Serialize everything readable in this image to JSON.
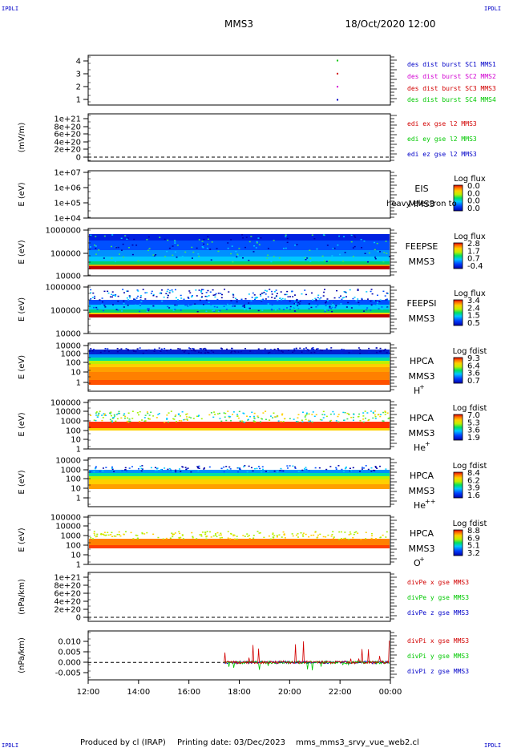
{
  "corner_label": "IPDLI",
  "header": {
    "mission": "MMS3",
    "datetime": "18/Oct/2020 12:00"
  },
  "footer": {
    "produced_by": "Produced by cl (IRAP)",
    "printing_date": "Printing date: 03/Dec/2023",
    "file": "mms_mms3_srvy_vue_web2.cl"
  },
  "time_axis": {
    "ticks": [
      "12:00",
      "14:00",
      "16:00",
      "18:00",
      "20:00",
      "22:00",
      "00:00"
    ],
    "range_hours": [
      0,
      12
    ]
  },
  "colors": {
    "blue": "#0000c8",
    "magenta": "#d200d2",
    "red": "#d20000",
    "green": "#00c800"
  },
  "chart_data": [
    {
      "id": "burst",
      "type": "scatter",
      "ylim": [
        0.6,
        4.4
      ],
      "yticks": [
        "1",
        "2",
        "3",
        "4"
      ],
      "series": [
        {
          "name": "des dist burst SC1 MMS1",
          "color": "#0000c8",
          "x": [
            9.9
          ],
          "y": [
            1
          ]
        },
        {
          "name": "des dist burst SC2 MMS2",
          "color": "#d200d2",
          "x": [
            9.9
          ],
          "y": [
            2
          ]
        },
        {
          "name": "des dist burst SC3 MMS3",
          "color": "#d20000",
          "x": [
            9.9
          ],
          "y": [
            3
          ]
        },
        {
          "name": "des dist burst SC4 MMS4",
          "color": "#00c800",
          "x": [
            9.9
          ],
          "y": [
            4
          ]
        }
      ]
    },
    {
      "id": "edi",
      "type": "line",
      "ylabel": "(mV/m)",
      "yticks": [
        "1e+21",
        "8e+20",
        "6e+20",
        "4e+20",
        "2e+20",
        "0"
      ],
      "series": [
        {
          "name": "edi ex gse l2 MMS3",
          "color": "#d20000"
        },
        {
          "name": "edi ey gse l2 MMS3",
          "color": "#00c800"
        },
        {
          "name": "edi ez gse l2 MMS3",
          "color": "#0000c8"
        }
      ]
    },
    {
      "id": "eis",
      "type": "heatmap",
      "ylabel": "E (eV)",
      "yticks": [
        "1e+07",
        "1e+06",
        "1e+05",
        "1e+04"
      ],
      "instrument": [
        "EIS",
        "MMS3"
      ],
      "overlay_text": "heavy electron to",
      "colorbar": {
        "title": "Log flux",
        "ticks": [
          "0.0",
          "0.0",
          "0.0",
          "0.0"
        ]
      }
    },
    {
      "id": "feepse",
      "type": "heatmap",
      "ylabel": "E (eV)",
      "yticks": [
        "1000000",
        "100000",
        "10000"
      ],
      "instrument": [
        "FEEPSE",
        "MMS3"
      ],
      "colorbar": {
        "title": "Log flux",
        "ticks": [
          "2.8",
          "1.7",
          "0.7",
          "-0.4"
        ]
      }
    },
    {
      "id": "feepsi",
      "type": "heatmap",
      "ylabel": "E (eV)",
      "yticks": [
        "1000000",
        "100000",
        "10000"
      ],
      "instrument": [
        "FEEPSI",
        "MMS3"
      ],
      "colorbar": {
        "title": "Log flux",
        "ticks": [
          "3.4",
          "2.4",
          "1.5",
          "0.5"
        ]
      }
    },
    {
      "id": "hpca_h",
      "type": "heatmap",
      "ylabel": "E (eV)",
      "yticks": [
        "10000",
        "1000",
        "100",
        "10",
        "1"
      ],
      "instrument": [
        "HPCA",
        "MMS3",
        "H",
        "+"
      ],
      "colorbar": {
        "title": "Log fdist",
        "ticks": [
          "9.3",
          "6.4",
          "3.6",
          "0.7"
        ]
      }
    },
    {
      "id": "hpca_he",
      "type": "heatmap",
      "ylabel": "E (eV)",
      "yticks": [
        "100000",
        "10000",
        "1000",
        "100",
        "10",
        "1"
      ],
      "instrument": [
        "HPCA",
        "MMS3",
        "He",
        "+"
      ],
      "colorbar": {
        "title": "Log fdist",
        "ticks": [
          "7.0",
          "5.3",
          "3.6",
          "1.9"
        ]
      }
    },
    {
      "id": "hpca_hepp",
      "type": "heatmap",
      "ylabel": "E (eV)",
      "yticks": [
        "10000",
        "1000",
        "100",
        "10",
        "1"
      ],
      "instrument": [
        "HPCA",
        "MMS3",
        "He",
        "++"
      ],
      "colorbar": {
        "title": "Log fdist",
        "ticks": [
          "8.4",
          "6.2",
          "3.9",
          "1.6"
        ]
      }
    },
    {
      "id": "hpca_o",
      "type": "heatmap",
      "ylabel": "E (eV)",
      "yticks": [
        "100000",
        "10000",
        "1000",
        "100",
        "10",
        "1"
      ],
      "instrument": [
        "HPCA",
        "MMS3",
        "O",
        "+"
      ],
      "colorbar": {
        "title": "Log fdist",
        "ticks": [
          "8.8",
          "6.9",
          "5.1",
          "3.2"
        ]
      }
    },
    {
      "id": "divpe",
      "type": "line",
      "ylabel": "(nPa/km)",
      "yticks": [
        "1e+21",
        "8e+20",
        "6e+20",
        "4e+20",
        "2e+20",
        "0"
      ],
      "series": [
        {
          "name": "divPe x gse MMS3",
          "color": "#d20000"
        },
        {
          "name": "divPe y gse MMS3",
          "color": "#00c800"
        },
        {
          "name": "divPe z gse MMS3",
          "color": "#0000c8"
        }
      ]
    },
    {
      "id": "divpi",
      "type": "line",
      "ylabel": "(nPa/km)",
      "ylim": [
        -0.0075,
        0.0135
      ],
      "yticks": [
        "0.010",
        "0.005",
        "0.000",
        "-0.005"
      ],
      "data_start_hour": 5.4,
      "series": [
        {
          "name": "divPi x gse MMS3",
          "color": "#d20000"
        },
        {
          "name": "divPi y gse MMS3",
          "color": "#00c800"
        },
        {
          "name": "divPi z gse MMS3",
          "color": "#0000c8"
        }
      ]
    }
  ]
}
